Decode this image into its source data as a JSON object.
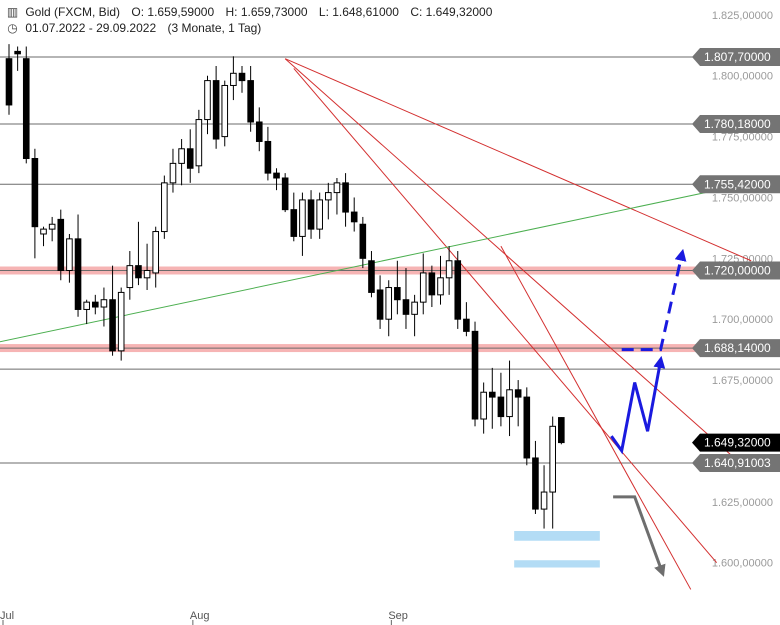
{
  "header": {
    "instrument": "Gold (FXCM, Bid)",
    "open_label": "O:",
    "open": "1.659,59000",
    "high_label": "H:",
    "high": "1.659,73000",
    "low_label": "L:",
    "low": "1.648,61000",
    "close_label": "C:",
    "close": "1.649,32000",
    "range": "01.07.2022 - 29.09.2022",
    "period": "(3 Monate, 1 Tag)",
    "icons": [
      "candlestick-icon",
      "clock-icon"
    ]
  },
  "chart_data": {
    "type": "candlestick",
    "ylim": [
      1590,
      1827
    ],
    "y_ticks": [
      {
        "v": 1825,
        "label": "1.825,00000"
      },
      {
        "v": 1800,
        "label": "1.800,00000"
      },
      {
        "v": 1775,
        "label": "1.775,00000"
      },
      {
        "v": 1750,
        "label": "1.750,00000"
      },
      {
        "v": 1725,
        "label": "1.725,00000"
      },
      {
        "v": 1700,
        "label": "1.700,00000"
      },
      {
        "v": 1675,
        "label": "1.675,00000"
      },
      {
        "v": 1650,
        "label": "1.650,00000"
      },
      {
        "v": 1625,
        "label": "1.625,00000"
      },
      {
        "v": 1600,
        "label": "1.600,00000"
      }
    ],
    "x_ticks": [
      {
        "i": 0,
        "label": "Jul"
      },
      {
        "i": 22,
        "label": "Aug"
      },
      {
        "i": 45,
        "label": "Sep"
      }
    ],
    "candles": [
      [
        1807,
        1813,
        1784,
        1788
      ],
      [
        1810,
        1812,
        1802,
        1809
      ],
      [
        1807,
        1812,
        1764,
        1766
      ],
      [
        1766,
        1770,
        1725,
        1738
      ],
      [
        1735,
        1738,
        1730,
        1737
      ],
      [
        1737,
        1742,
        1732,
        1739
      ],
      [
        1741,
        1745,
        1716,
        1720
      ],
      [
        1720,
        1735,
        1715,
        1733
      ],
      [
        1733,
        1743,
        1701,
        1704
      ],
      [
        1704,
        1708,
        1698,
        1707
      ],
      [
        1707,
        1710,
        1702,
        1705
      ],
      [
        1705,
        1713,
        1697,
        1708
      ],
      [
        1708,
        1722,
        1685,
        1687
      ],
      [
        1687,
        1713,
        1683,
        1711
      ],
      [
        1713,
        1728,
        1708,
        1722
      ],
      [
        1722,
        1740,
        1714,
        1717
      ],
      [
        1717,
        1731,
        1712,
        1720
      ],
      [
        1719,
        1738,
        1713,
        1736
      ],
      [
        1736,
        1759,
        1733,
        1756
      ],
      [
        1756,
        1770,
        1752,
        1764
      ],
      [
        1764,
        1774,
        1755,
        1770
      ],
      [
        1770,
        1778,
        1756,
        1762
      ],
      [
        1763,
        1786,
        1760,
        1782
      ],
      [
        1782,
        1800,
        1776,
        1798
      ],
      [
        1798,
        1804,
        1770,
        1774
      ],
      [
        1775,
        1798,
        1771,
        1796
      ],
      [
        1796,
        1808,
        1790,
        1801
      ],
      [
        1801,
        1804,
        1793,
        1798
      ],
      [
        1798,
        1804,
        1777,
        1781
      ],
      [
        1781,
        1787,
        1769,
        1773
      ],
      [
        1773,
        1779,
        1757,
        1760
      ],
      [
        1760,
        1762,
        1753,
        1758
      ],
      [
        1758,
        1760,
        1744,
        1745
      ],
      [
        1745,
        1752,
        1732,
        1734
      ],
      [
        1734,
        1752,
        1726,
        1749
      ],
      [
        1749,
        1753,
        1733,
        1737
      ],
      [
        1737,
        1752,
        1733,
        1749
      ],
      [
        1749,
        1756,
        1741,
        1752
      ],
      [
        1752,
        1758,
        1743,
        1756
      ],
      [
        1756,
        1760,
        1738,
        1744
      ],
      [
        1744,
        1750,
        1736,
        1740
      ],
      [
        1739,
        1742,
        1721,
        1725
      ],
      [
        1724,
        1728,
        1709,
        1711
      ],
      [
        1712,
        1718,
        1696,
        1700
      ],
      [
        1700,
        1716,
        1693,
        1713
      ],
      [
        1713,
        1724,
        1702,
        1708
      ],
      [
        1708,
        1721,
        1696,
        1702
      ],
      [
        1702,
        1710,
        1693,
        1707
      ],
      [
        1707,
        1727,
        1702,
        1719
      ],
      [
        1719,
        1722,
        1705,
        1710
      ],
      [
        1710,
        1726,
        1706,
        1717
      ],
      [
        1717,
        1730,
        1710,
        1724
      ],
      [
        1724,
        1728,
        1696,
        1700
      ],
      [
        1700,
        1707,
        1693,
        1695
      ],
      [
        1695,
        1699,
        1656,
        1659
      ],
      [
        1659,
        1674,
        1653,
        1670
      ],
      [
        1670,
        1680,
        1655,
        1668
      ],
      [
        1668,
        1678,
        1656,
        1660
      ],
      [
        1660,
        1683,
        1652,
        1671
      ],
      [
        1671,
        1675,
        1656,
        1668
      ],
      [
        1668,
        1672,
        1640,
        1643
      ],
      [
        1643,
        1650,
        1620,
        1622
      ],
      [
        1622,
        1640,
        1614,
        1629
      ],
      [
        1629,
        1660,
        1614,
        1656
      ],
      [
        1659.59,
        1659.73,
        1648.61,
        1649.32
      ]
    ],
    "h_lines": [
      {
        "v": 1807.7,
        "label": "1.807,70000",
        "kind": "resistance"
      },
      {
        "v": 1780.18,
        "label": "1.780,18000",
        "kind": "resistance"
      },
      {
        "v": 1755.42,
        "label": "1.755,42000",
        "kind": "resistance"
      },
      {
        "v": 1720,
        "label": "1.720,00000",
        "kind": "zone"
      },
      {
        "v": 1688.14,
        "label": "1.688,14000",
        "kind": "zone"
      },
      {
        "v": 1640.91003,
        "label": "1.640,91003",
        "kind": "level"
      }
    ],
    "unlabeled_lines": [
      1679.5
    ],
    "current_price": {
      "v": 1649.32,
      "label": "1.649,32000"
    },
    "trendlines": [
      {
        "color": "#d32f2f",
        "from": [
          32,
          1807
        ],
        "to": [
          86,
          1724
        ]
      },
      {
        "color": "#d32f2f",
        "from": [
          32,
          1807
        ],
        "to": [
          85,
          1640
        ]
      },
      {
        "color": "#d32f2f",
        "from": [
          33,
          1803
        ],
        "to": [
          82,
          1600
        ]
      },
      {
        "color": "#d32f2f",
        "from": [
          57,
          1730
        ],
        "to": [
          79,
          1589
        ]
      },
      {
        "color": "#4caf50",
        "from": [
          -2,
          1690
        ],
        "to": [
          86,
          1756
        ]
      }
    ],
    "support_boxes": [
      {
        "x": [
          59,
          68
        ],
        "y": [
          1609,
          1613
        ]
      },
      {
        "x": [
          59,
          68
        ],
        "y": [
          1598,
          1601
        ]
      }
    ],
    "projections": [
      {
        "color": "#1a1adf",
        "style": "solid",
        "points": [
          [
            69.8,
            1652
          ],
          [
            71,
            1646
          ],
          [
            72.5,
            1674
          ],
          [
            74,
            1654
          ],
          [
            75.5,
            1683
          ]
        ],
        "arrow": true
      },
      {
        "color": "#1a1adf",
        "style": "dashed",
        "points": [
          [
            71,
            1687.5
          ],
          [
            75.5,
            1687.5
          ],
          [
            78,
            1727
          ]
        ],
        "arrow": true
      },
      {
        "color": "#6e6e6e",
        "style": "solid",
        "points": [
          [
            70,
            1627
          ],
          [
            72.5,
            1627
          ],
          [
            75.7,
            1596
          ]
        ],
        "arrow": true
      }
    ],
    "colors": {
      "up_body": "#ffffff",
      "down_body": "#000000",
      "wick": "#000000",
      "zone": "#f4a7a7",
      "hline": "#6b6b6b",
      "tag_gray": "#747474",
      "tag_current": "#000000",
      "support_box": "#b3dcf5"
    }
  }
}
